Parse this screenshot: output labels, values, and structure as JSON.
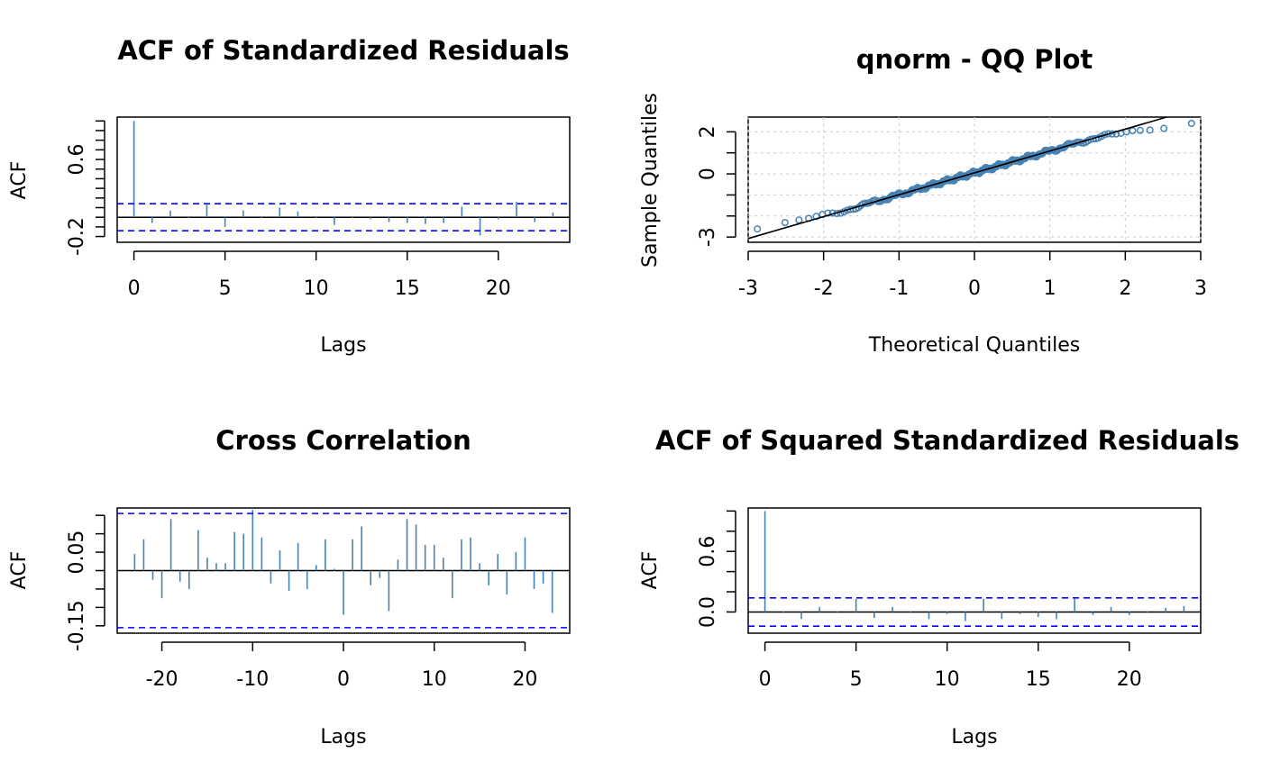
{
  "colors": {
    "bars": "#4682b4",
    "ci": "#0000ff",
    "qqline": "#000000",
    "points": "#4682b4"
  },
  "chart_data": [
    {
      "id": "p1",
      "type": "bar",
      "title": "ACF of Standardized Residuals",
      "xlabel": "Lags",
      "ylabel": "ACF",
      "xlim": [
        -0.92,
        23.92
      ],
      "ylim": [
        -0.26,
        1.04
      ],
      "xticks": [
        0,
        5,
        10,
        15,
        20
      ],
      "yticks": [
        -0.2,
        0.6
      ],
      "yminor": [
        -0.2,
        -0.1,
        0,
        0.1,
        0.2,
        0.3,
        0.4,
        0.5,
        0.6,
        0.7,
        0.8,
        0.9,
        1.0
      ],
      "ci": 0.14,
      "x": [
        0,
        1,
        2,
        3,
        4,
        5,
        6,
        7,
        8,
        9,
        10,
        11,
        12,
        13,
        14,
        15,
        16,
        17,
        18,
        19,
        20,
        21,
        22,
        23
      ],
      "values": [
        1.0,
        -0.06,
        0.07,
        -0.01,
        0.13,
        -0.1,
        0.07,
        -0.01,
        0.1,
        0.06,
        -0.01,
        -0.08,
        -0.01,
        -0.02,
        -0.05,
        -0.06,
        -0.07,
        -0.06,
        0.11,
        -0.19,
        -0.02,
        0.16,
        -0.05,
        0.05
      ]
    },
    {
      "id": "p2",
      "type": "scatter",
      "title": "qnorm - QQ Plot",
      "xlabel": "Theoretical Quantiles",
      "ylabel": "Sample Quantiles",
      "xlim": [
        -3,
        3
      ],
      "ylim": [
        -3.25,
        2.7
      ],
      "xticks": [
        -3,
        -2,
        -1,
        0,
        1,
        2,
        3
      ],
      "yticks": [
        -3,
        0,
        2
      ],
      "yminor": [
        -3,
        -2,
        -1,
        0,
        1,
        2
      ],
      "grid": true,
      "line": {
        "intercept": 0.05,
        "slope": 1.04
      },
      "n": 250
    },
    {
      "id": "p3",
      "type": "bar",
      "title": "Cross Correlation",
      "xlabel": "Lags",
      "ylabel": "ACF",
      "xlim": [
        -24.92,
        24.92
      ],
      "ylim": [
        -0.17,
        0.17
      ],
      "xticks": [
        -20,
        -10,
        0,
        10,
        20
      ],
      "yticks": [
        -0.15,
        0.05
      ],
      "yminor": [
        -0.15,
        -0.1,
        -0.05,
        0,
        0.05,
        0.1,
        0.15
      ],
      "ci": 0.155,
      "x": [
        -23,
        -22,
        -21,
        -20,
        -19,
        -18,
        -17,
        -16,
        -15,
        -14,
        -13,
        -12,
        -11,
        -10,
        -9,
        -8,
        -7,
        -6,
        -5,
        -4,
        -3,
        -2,
        -1,
        0,
        1,
        2,
        3,
        4,
        5,
        6,
        7,
        8,
        9,
        10,
        11,
        12,
        13,
        14,
        15,
        16,
        17,
        18,
        19,
        20,
        21,
        22,
        23
      ],
      "values": [
        0.045,
        0.085,
        -0.025,
        -0.075,
        0.14,
        -0.03,
        -0.05,
        0.11,
        0.035,
        0.02,
        0.02,
        0.105,
        0.1,
        0.165,
        0.09,
        -0.035,
        0.055,
        -0.055,
        0.075,
        -0.05,
        0.015,
        0.085,
        0.005,
        -0.12,
        0.085,
        0.12,
        -0.04,
        -0.02,
        -0.11,
        0.03,
        0.14,
        0.125,
        0.07,
        0.07,
        0.035,
        -0.075,
        0.085,
        0.09,
        0.02,
        -0.04,
        0.045,
        -0.065,
        0.05,
        0.09,
        -0.05,
        -0.035,
        -0.115
      ]
    },
    {
      "id": "p4",
      "type": "bar",
      "title": "ACF of Squared Standardized Residuals",
      "xlabel": "Lags",
      "ylabel": "ACF",
      "xlim": [
        -0.92,
        23.92
      ],
      "ylim": [
        -0.21,
        1.03
      ],
      "xticks": [
        0,
        5,
        10,
        15,
        20
      ],
      "yticks": [
        0.0,
        0.6
      ],
      "yminor": [
        0,
        0.2,
        0.4,
        0.6,
        0.8,
        1.0
      ],
      "ci": 0.14,
      "x": [
        0,
        1,
        2,
        3,
        4,
        5,
        6,
        7,
        8,
        9,
        10,
        11,
        12,
        13,
        14,
        15,
        16,
        17,
        18,
        19,
        20,
        21,
        22,
        23
      ],
      "values": [
        1.0,
        -0.01,
        -0.07,
        0.05,
        -0.01,
        0.13,
        -0.06,
        0.05,
        -0.01,
        -0.07,
        -0.02,
        -0.09,
        0.13,
        -0.07,
        -0.02,
        -0.05,
        -0.07,
        0.13,
        -0.03,
        0.05,
        -0.03,
        -0.01,
        0.04,
        0.06
      ]
    }
  ]
}
